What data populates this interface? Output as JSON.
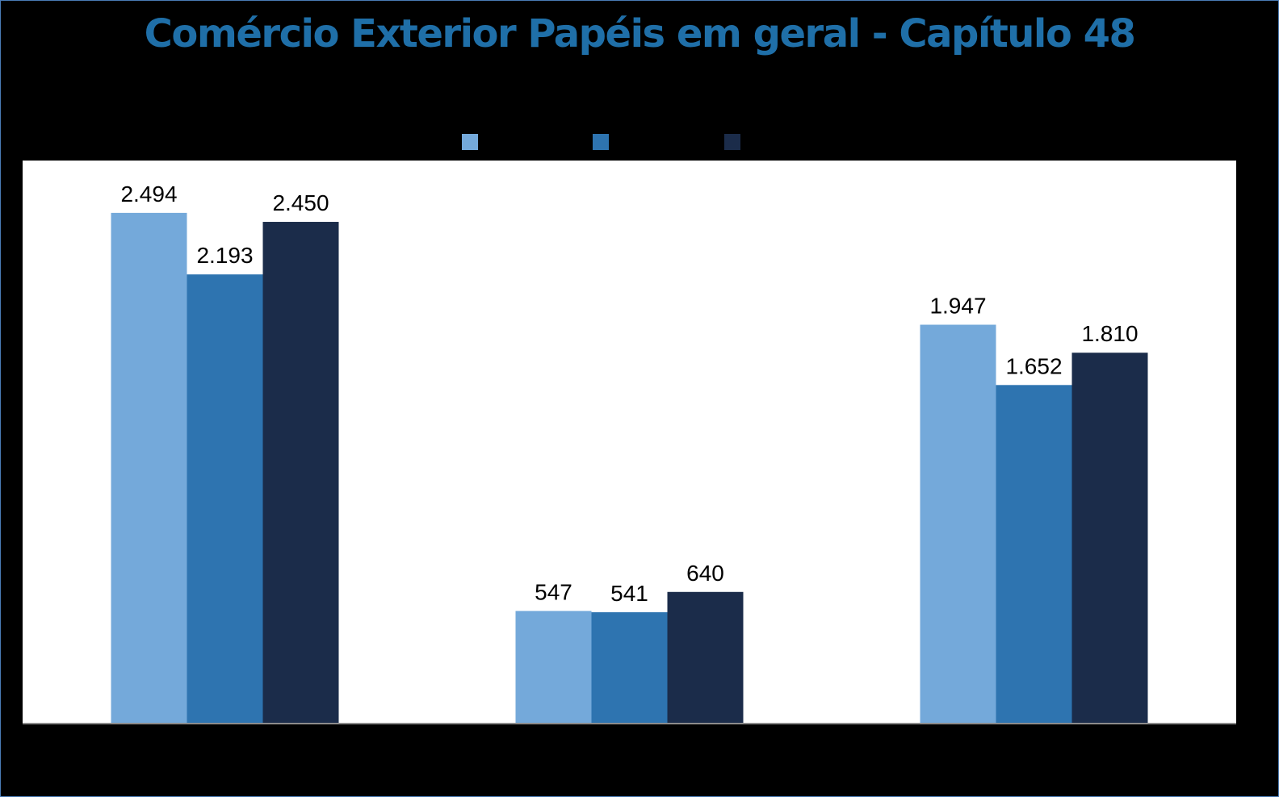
{
  "chart_data": {
    "type": "bar",
    "title": "Comércio Exterior Papéis em geral - Capítulo 48",
    "categories": [
      "",
      "",
      ""
    ],
    "series": [
      {
        "name": "",
        "color": "#74a9da",
        "values": [
          2494,
          547,
          1947
        ],
        "labels": [
          "2.494",
          "547",
          "1.947"
        ]
      },
      {
        "name": "",
        "color": "#2e74b0",
        "values": [
          2193,
          541,
          1652
        ],
        "labels": [
          "2.193",
          "541",
          "1.652"
        ]
      },
      {
        "name": "",
        "color": "#1b2c4a",
        "values": [
          2450,
          640,
          1810
        ],
        "labels": [
          "2.450",
          "640",
          "1.810"
        ]
      }
    ],
    "ylim": [
      0,
      2750
    ],
    "grid": false,
    "legend_position": "top",
    "colors": {
      "title": "#1f6fa8",
      "plot_background": "#ffffff",
      "page_background": "#000000",
      "axis": "#8c8c8c"
    }
  }
}
